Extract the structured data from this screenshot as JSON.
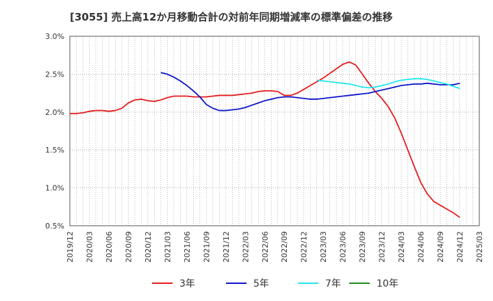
{
  "chart_data": {
    "type": "line",
    "title": "[3055]  売上高12か月移動合計の対前年同期増減率の標準偏差の推移",
    "xlabel": "",
    "ylabel": "",
    "ylim": [
      0.5,
      3.0
    ],
    "y_ticks": [
      "0.5%",
      "1.0%",
      "1.5%",
      "2.0%",
      "2.5%",
      "3.0%"
    ],
    "y_tick_values": [
      0.5,
      1.0,
      1.5,
      2.0,
      2.5,
      3.0
    ],
    "x_ticks": [
      "2019/12",
      "2020/03",
      "2020/06",
      "2020/09",
      "2020/12",
      "2021/03",
      "2021/06",
      "2021/09",
      "2021/12",
      "2022/03",
      "2022/06",
      "2022/09",
      "2022/12",
      "2023/03",
      "2023/06",
      "2023/09",
      "2023/12",
      "2024/03",
      "2024/06",
      "2024/09",
      "2024/12",
      "2025/03"
    ],
    "grid": true,
    "legend_position": "bottom",
    "series": [
      {
        "name": "3年",
        "color": "#e31a1c",
        "points": [
          [
            "2019/12",
            1.98
          ],
          [
            "2020/01",
            1.98
          ],
          [
            "2020/02",
            1.99
          ],
          [
            "2020/03",
            2.01
          ],
          [
            "2020/04",
            2.02
          ],
          [
            "2020/05",
            2.02
          ],
          [
            "2020/06",
            2.01
          ],
          [
            "2020/07",
            2.02
          ],
          [
            "2020/08",
            2.05
          ],
          [
            "2020/09",
            2.12
          ],
          [
            "2020/10",
            2.16
          ],
          [
            "2020/11",
            2.17
          ],
          [
            "2020/12",
            2.15
          ],
          [
            "2021/01",
            2.14
          ],
          [
            "2021/02",
            2.16
          ],
          [
            "2021/03",
            2.19
          ],
          [
            "2021/04",
            2.21
          ],
          [
            "2021/05",
            2.21
          ],
          [
            "2021/06",
            2.21
          ],
          [
            "2021/07",
            2.2
          ],
          [
            "2021/08",
            2.2
          ],
          [
            "2021/09",
            2.2
          ],
          [
            "2021/10",
            2.21
          ],
          [
            "2021/11",
            2.22
          ],
          [
            "2021/12",
            2.22
          ],
          [
            "2022/01",
            2.22
          ],
          [
            "2022/02",
            2.23
          ],
          [
            "2022/03",
            2.24
          ],
          [
            "2022/04",
            2.25
          ],
          [
            "2022/05",
            2.27
          ],
          [
            "2022/06",
            2.28
          ],
          [
            "2022/07",
            2.28
          ],
          [
            "2022/08",
            2.27
          ],
          [
            "2022/09",
            2.22
          ],
          [
            "2022/10",
            2.22
          ],
          [
            "2022/11",
            2.25
          ],
          [
            "2022/12",
            2.3
          ],
          [
            "2023/01",
            2.35
          ],
          [
            "2023/02",
            2.4
          ],
          [
            "2023/03",
            2.45
          ],
          [
            "2023/04",
            2.51
          ],
          [
            "2023/05",
            2.57
          ],
          [
            "2023/06",
            2.63
          ],
          [
            "2023/07",
            2.66
          ],
          [
            "2023/08",
            2.62
          ],
          [
            "2023/09",
            2.5
          ],
          [
            "2023/10",
            2.38
          ],
          [
            "2023/11",
            2.27
          ],
          [
            "2023/12",
            2.18
          ],
          [
            "2024/01",
            2.07
          ],
          [
            "2024/02",
            1.92
          ],
          [
            "2024/03",
            1.72
          ],
          [
            "2024/04",
            1.5
          ],
          [
            "2024/05",
            1.28
          ],
          [
            "2024/06",
            1.07
          ],
          [
            "2024/07",
            0.92
          ],
          [
            "2024/08",
            0.82
          ],
          [
            "2024/09",
            0.77
          ],
          [
            "2024/10",
            0.72
          ],
          [
            "2024/11",
            0.67
          ],
          [
            "2024/12",
            0.61
          ]
        ]
      },
      {
        "name": "5年",
        "color": "#0a14c8",
        "points": [
          [
            "2021/02",
            2.52
          ],
          [
            "2021/03",
            2.5
          ],
          [
            "2021/04",
            2.46
          ],
          [
            "2021/05",
            2.41
          ],
          [
            "2021/06",
            2.35
          ],
          [
            "2021/07",
            2.28
          ],
          [
            "2021/08",
            2.2
          ],
          [
            "2021/09",
            2.1
          ],
          [
            "2021/10",
            2.05
          ],
          [
            "2021/11",
            2.02
          ],
          [
            "2021/12",
            2.02
          ],
          [
            "2022/01",
            2.03
          ],
          [
            "2022/02",
            2.04
          ],
          [
            "2022/03",
            2.06
          ],
          [
            "2022/04",
            2.09
          ],
          [
            "2022/05",
            2.12
          ],
          [
            "2022/06",
            2.15
          ],
          [
            "2022/07",
            2.17
          ],
          [
            "2022/08",
            2.19
          ],
          [
            "2022/09",
            2.2
          ],
          [
            "2022/10",
            2.2
          ],
          [
            "2022/11",
            2.19
          ],
          [
            "2022/12",
            2.18
          ],
          [
            "2023/01",
            2.17
          ],
          [
            "2023/02",
            2.17
          ],
          [
            "2023/03",
            2.18
          ],
          [
            "2023/04",
            2.19
          ],
          [
            "2023/05",
            2.2
          ],
          [
            "2023/06",
            2.21
          ],
          [
            "2023/07",
            2.22
          ],
          [
            "2023/08",
            2.23
          ],
          [
            "2023/09",
            2.24
          ],
          [
            "2023/10",
            2.25
          ],
          [
            "2023/11",
            2.27
          ],
          [
            "2023/12",
            2.29
          ],
          [
            "2024/01",
            2.31
          ],
          [
            "2024/02",
            2.33
          ],
          [
            "2024/03",
            2.35
          ],
          [
            "2024/04",
            2.36
          ],
          [
            "2024/05",
            2.37
          ],
          [
            "2024/06",
            2.37
          ],
          [
            "2024/07",
            2.38
          ],
          [
            "2024/08",
            2.37
          ],
          [
            "2024/09",
            2.36
          ],
          [
            "2024/10",
            2.36
          ],
          [
            "2024/11",
            2.36
          ],
          [
            "2024/12",
            2.38
          ]
        ]
      },
      {
        "name": "7年",
        "color": "#1ee6f0",
        "points": [
          [
            "2023/02",
            2.42
          ],
          [
            "2023/03",
            2.41
          ],
          [
            "2023/04",
            2.4
          ],
          [
            "2023/05",
            2.39
          ],
          [
            "2023/06",
            2.38
          ],
          [
            "2023/07",
            2.37
          ],
          [
            "2023/08",
            2.35
          ],
          [
            "2023/09",
            2.33
          ],
          [
            "2023/10",
            2.32
          ],
          [
            "2023/11",
            2.33
          ],
          [
            "2023/12",
            2.35
          ],
          [
            "2024/01",
            2.37
          ],
          [
            "2024/02",
            2.4
          ],
          [
            "2024/03",
            2.42
          ],
          [
            "2024/04",
            2.43
          ],
          [
            "2024/05",
            2.44
          ],
          [
            "2024/06",
            2.44
          ],
          [
            "2024/07",
            2.43
          ],
          [
            "2024/08",
            2.41
          ],
          [
            "2024/09",
            2.39
          ],
          [
            "2024/10",
            2.37
          ],
          [
            "2024/11",
            2.34
          ],
          [
            "2024/12",
            2.31
          ]
        ]
      },
      {
        "name": "10年",
        "color": "#1a8a1a",
        "points": []
      }
    ]
  }
}
